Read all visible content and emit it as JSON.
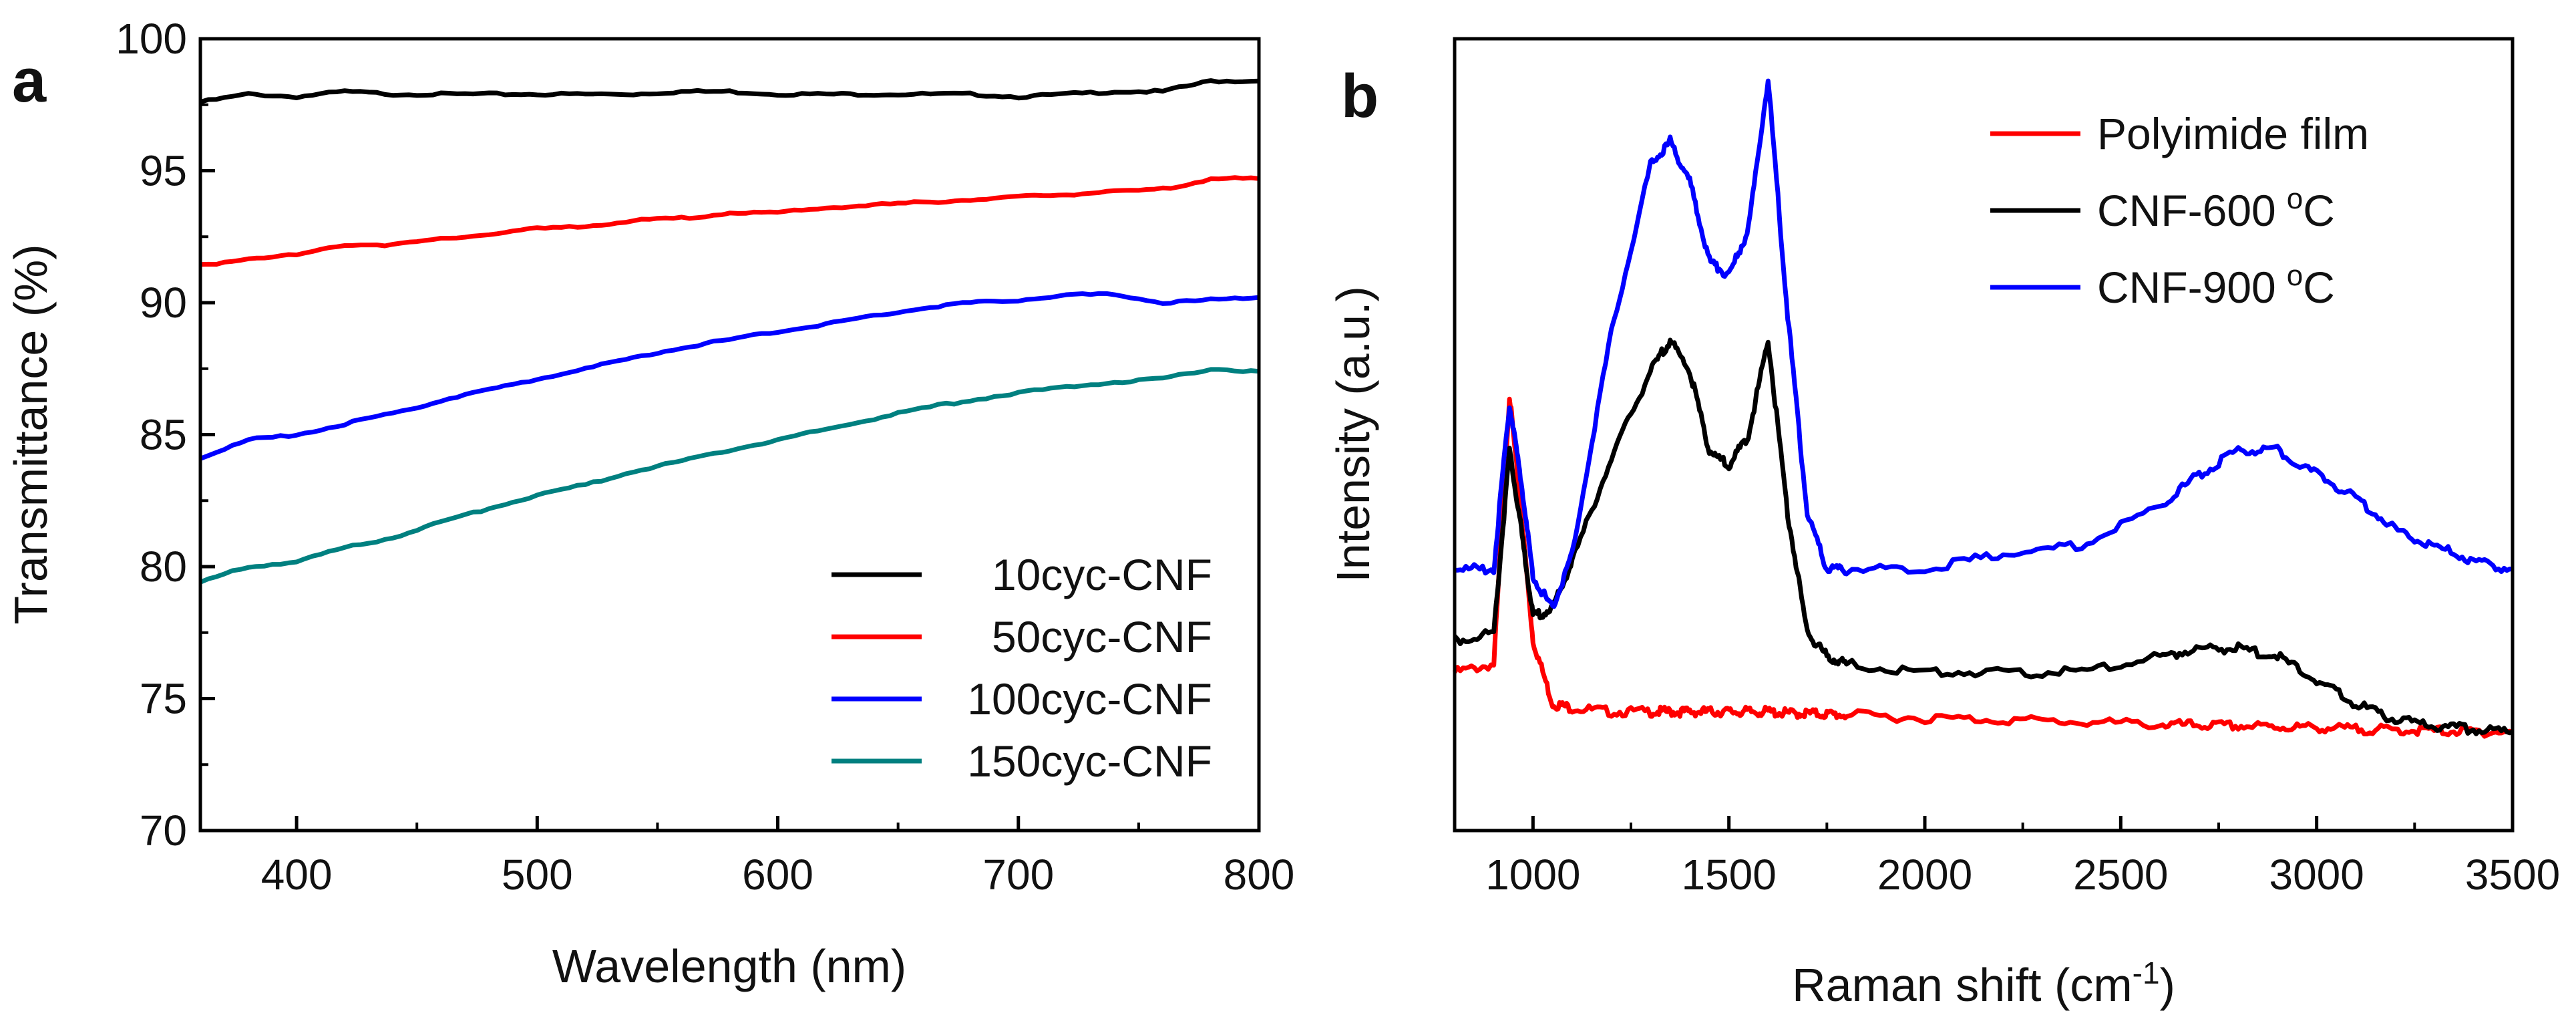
{
  "chart_data": [
    {
      "panel": "a",
      "type": "line",
      "xlabel": "Wavelength (nm)",
      "ylabel": "Transmittance (%)",
      "xlim": [
        360,
        800
      ],
      "ylim": [
        70,
        100
      ],
      "xticks": [
        400,
        500,
        600,
        700,
        800
      ],
      "yticks": [
        70,
        75,
        80,
        85,
        90,
        95,
        100
      ],
      "legend_position": "bottom-right",
      "x": [
        360,
        380,
        400,
        420,
        440,
        460,
        480,
        500,
        520,
        540,
        560,
        580,
        600,
        620,
        640,
        660,
        680,
        700,
        720,
        740,
        760,
        780,
        800
      ],
      "series": [
        {
          "name": "10cyc-CNF",
          "color": "#000000",
          "values": [
            97.6,
            97.9,
            97.8,
            98.0,
            97.9,
            97.9,
            97.9,
            97.9,
            97.9,
            97.9,
            98.0,
            98.0,
            97.9,
            97.9,
            97.9,
            97.9,
            97.9,
            97.8,
            97.9,
            98.0,
            98.0,
            98.4,
            98.4
          ]
        },
        {
          "name": "50cyc-CNF",
          "color": "#ff0000",
          "values": [
            91.4,
            91.7,
            91.8,
            92.2,
            92.2,
            92.4,
            92.6,
            92.8,
            92.9,
            93.1,
            93.2,
            93.4,
            93.4,
            93.6,
            93.7,
            93.8,
            93.9,
            94.0,
            94.1,
            94.2,
            94.3,
            94.7,
            94.7
          ]
        },
        {
          "name": "100cyc-CNF",
          "color": "#0000ff",
          "values": [
            84.1,
            84.8,
            85.0,
            85.4,
            85.8,
            86.3,
            86.7,
            87.1,
            87.5,
            87.9,
            88.3,
            88.6,
            88.9,
            89.2,
            89.5,
            89.8,
            90.0,
            90.1,
            90.3,
            90.3,
            90.0,
            90.1,
            90.2
          ]
        },
        {
          "name": "150cyc-CNF",
          "color": "#008080",
          "values": [
            79.4,
            80.0,
            80.2,
            80.7,
            81.1,
            81.7,
            82.2,
            82.7,
            83.1,
            83.6,
            84.0,
            84.4,
            84.8,
            85.2,
            85.6,
            86.0,
            86.3,
            86.6,
            86.8,
            87.0,
            87.1,
            87.5,
            87.4
          ]
        }
      ]
    },
    {
      "panel": "b",
      "type": "line",
      "xlabel": "Raman shift (cm",
      "xlabel_sup": "-1",
      "xlabel_end": ")",
      "ylabel": "Intensity (a.u.)",
      "xlim": [
        800,
        3500
      ],
      "ylim": [
        0,
        100
      ],
      "xticks": [
        1000,
        1500,
        2000,
        2500,
        3000,
        3500
      ],
      "legend_position": "top-right",
      "x": [
        800,
        900,
        940,
        970,
        1000,
        1050,
        1100,
        1200,
        1300,
        1350,
        1400,
        1450,
        1500,
        1550,
        1600,
        1650,
        1700,
        1750,
        1800,
        2000,
        2200,
        2400,
        2600,
        2700,
        2800,
        2900,
        3000,
        3100,
        3200,
        3300,
        3400,
        3500
      ],
      "series": [
        {
          "name": "Polyimide film",
          "unit": "",
          "color": "#ff0000",
          "values": [
            20,
            21,
            55,
            40,
            24,
            16,
            15.5,
            15,
            15,
            15,
            15,
            15,
            15,
            15,
            15,
            14.8,
            14.8,
            14.7,
            14.6,
            14.2,
            14,
            13.7,
            13.4,
            13.3,
            13.2,
            13.1,
            13.0,
            12.8,
            12.7,
            12.6,
            12.5,
            12.4
          ]
        },
        {
          "name": "CNF-600",
          "unit": "oC",
          "color": "#000000",
          "values": [
            24,
            25,
            48,
            38,
            27,
            28,
            34,
            47,
            58,
            62,
            58,
            48,
            46,
            50,
            62,
            40,
            25,
            22,
            21,
            20,
            20,
            20,
            22,
            23,
            23,
            22,
            19,
            16,
            14,
            13.2,
            12.8,
            12.5
          ]
        },
        {
          "name": "CNF-900",
          "unit": "oC",
          "color": "#0000ff",
          "values": [
            33,
            33,
            54,
            44,
            32,
            28,
            35,
            63,
            84,
            87,
            82,
            72,
            70,
            76,
            95,
            65,
            40,
            33,
            33,
            33,
            35,
            36,
            41,
            45,
            48,
            48,
            45,
            42,
            38,
            36,
            34,
            33
          ]
        }
      ]
    }
  ]
}
